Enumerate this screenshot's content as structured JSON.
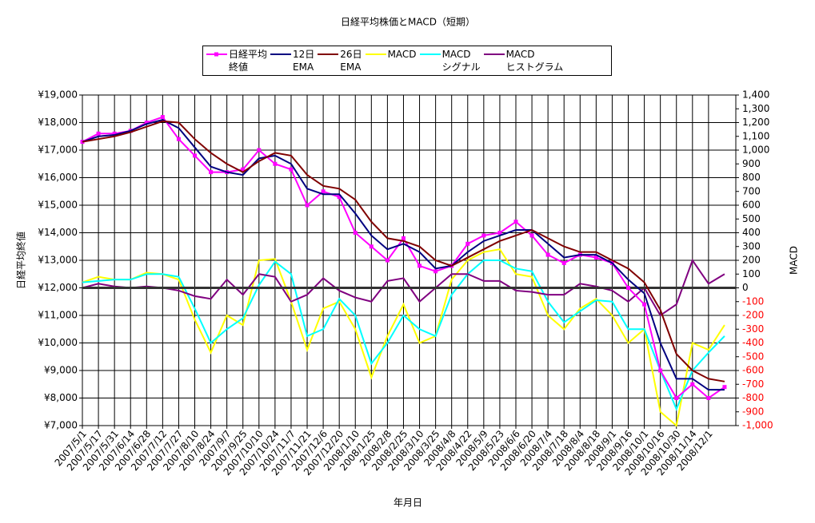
{
  "chart_data": {
    "type": "line",
    "title": "日経平均株価とMACD（短期）",
    "x_label": "年月日",
    "y_label": "日経平均終値",
    "y2_label": "MACD",
    "categories": [
      "2007/5/1",
      "2007/5/17",
      "2007/5/31",
      "2007/6/14",
      "2007/6/28",
      "2007/7/12",
      "2007/7/27",
      "2007/8/10",
      "2007/8/24",
      "2007/9/7",
      "2007/9/25",
      "2007/10/10",
      "2007/10/24",
      "2007/11/7",
      "2007/11/21",
      "2007/12/6",
      "2007/12/20",
      "2008/1/10",
      "2008/1/25",
      "2008/2/8",
      "2008/2/25",
      "2008/3/10",
      "2008/3/25",
      "2008/4/8",
      "2008/4/22",
      "2008/5/9",
      "2008/5/23",
      "2008/6/6",
      "2008/6/20",
      "2008/7/4",
      "2008/7/18",
      "2008/8/4",
      "2008/8/18",
      "2008/9/1",
      "2008/9/16",
      "2008/10/1",
      "2008/10/16",
      "2008/10/30",
      "2008/11/14",
      "2008/12/1",
      null
    ],
    "ylim": [
      7000,
      19000
    ],
    "yticks": [
      {
        "value": 7000,
        "label": "¥7,000"
      },
      {
        "value": 8000,
        "label": "¥8,000"
      },
      {
        "value": 9000,
        "label": "¥9,000"
      },
      {
        "value": 10000,
        "label": "¥10,000"
      },
      {
        "value": 11000,
        "label": "¥11,000"
      },
      {
        "value": 12000,
        "label": "¥12,000"
      },
      {
        "value": 13000,
        "label": "¥13,000"
      },
      {
        "value": 14000,
        "label": "¥14,000"
      },
      {
        "value": 15000,
        "label": "¥15,000"
      },
      {
        "value": 16000,
        "label": "¥16,000"
      },
      {
        "value": 17000,
        "label": "¥17,000"
      },
      {
        "value": 18000,
        "label": "¥18,000"
      },
      {
        "value": 19000,
        "label": "¥19,000"
      }
    ],
    "y2lim": [
      -1000,
      1400
    ],
    "y2ticks": [
      {
        "value": -1000,
        "label": "-1,000"
      },
      -900,
      -800,
      -700,
      -600,
      -500,
      -400,
      -300,
      -200,
      -100,
      0,
      100,
      200,
      300,
      400,
      500,
      600,
      700,
      800,
      900,
      {
        "value": 1000,
        "label": "1,000"
      },
      {
        "value": 1100,
        "label": "1,100"
      },
      {
        "value": 1200,
        "label": "1,200"
      },
      {
        "value": 1300,
        "label": "1,300"
      },
      {
        "value": 1400,
        "label": "1,400"
      }
    ],
    "y2_negative_color": "#ff0000",
    "y2_zero_line": true,
    "grid": true,
    "legend": "top",
    "series": [
      {
        "name": "日経平均\n終値",
        "color": "#ff00ff",
        "marker": "square",
        "values": [
          17300,
          17600,
          17600,
          17700,
          18000,
          18200,
          17400,
          16800,
          16200,
          16200,
          16300,
          17000,
          16500,
          16300,
          15000,
          15500,
          15300,
          14000,
          13500,
          13000,
          13800,
          12800,
          12600,
          12800,
          13600,
          13900,
          14000,
          14400,
          13900,
          13200,
          12900,
          13200,
          13100,
          12900,
          12000,
          11400,
          9000,
          8000,
          8500,
          8000,
          8400
        ]
      },
      {
        "name": "12日\nEMA",
        "color": "#000080",
        "values": [
          17300,
          17500,
          17550,
          17700,
          17950,
          18100,
          17800,
          17100,
          16400,
          16200,
          16100,
          16700,
          16800,
          16500,
          15600,
          15400,
          15400,
          14700,
          13900,
          13400,
          13600,
          13300,
          12700,
          12800,
          13300,
          13700,
          13900,
          14100,
          14100,
          13600,
          13100,
          13200,
          13200,
          12900,
          12300,
          11800,
          10000,
          8700,
          8700,
          8300,
          8300
        ]
      },
      {
        "name": "26日\nEMA",
        "color": "#800000",
        "values": [
          17300,
          17400,
          17500,
          17650,
          17850,
          18050,
          18000,
          17400,
          16900,
          16500,
          16200,
          16600,
          16900,
          16800,
          16100,
          15700,
          15600,
          15200,
          14400,
          13800,
          13700,
          13500,
          13000,
          12800,
          13100,
          13400,
          13700,
          13900,
          14100,
          13800,
          13500,
          13300,
          13300,
          13000,
          12700,
          12200,
          11200,
          9600,
          9000,
          8700,
          8600
        ]
      },
      {
        "name": "MACD",
        "color": "#ffff00",
        "axis": "y2",
        "values": [
          40,
          80,
          60,
          60,
          110,
          100,
          60,
          -230,
          -470,
          -200,
          -270,
          200,
          210,
          -100,
          -450,
          -150,
          -100,
          -300,
          -650,
          -350,
          -120,
          -400,
          -350,
          60,
          200,
          260,
          280,
          100,
          80,
          -200,
          -300,
          -150,
          -80,
          -200,
          -400,
          -300,
          -900,
          -1000,
          -400,
          -450,
          -270
        ]
      },
      {
        "name": "MACD\nシグナル",
        "color": "#00ffff",
        "axis": "y2",
        "values": [
          40,
          50,
          60,
          60,
          100,
          100,
          80,
          -150,
          -400,
          -300,
          -220,
          20,
          190,
          100,
          -350,
          -300,
          -80,
          -200,
          -550,
          -400,
          -200,
          -300,
          -350,
          -50,
          100,
          200,
          200,
          140,
          120,
          -100,
          -250,
          -170,
          -90,
          -100,
          -300,
          -300,
          -600,
          -880,
          -600,
          -470,
          -350
        ]
      },
      {
        "name": "MACD\nヒストグラム",
        "color": "#800080",
        "axis": "y2",
        "values": [
          0,
          30,
          10,
          0,
          10,
          0,
          -20,
          -60,
          -80,
          60,
          -50,
          100,
          80,
          -100,
          -50,
          70,
          -20,
          -70,
          -100,
          50,
          70,
          -100,
          0,
          100,
          100,
          50,
          50,
          -20,
          -30,
          -50,
          -50,
          30,
          10,
          -20,
          -100,
          0,
          -200,
          -120,
          200,
          30,
          100
        ]
      }
    ]
  }
}
